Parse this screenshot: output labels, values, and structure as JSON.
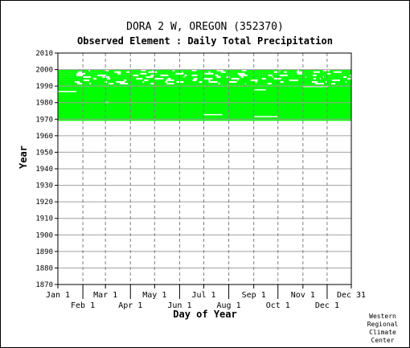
{
  "title": "DORA 2 W, OREGON   (352370)",
  "subtitle": "Observed Element : Daily Total Precipitation",
  "credit": "Western\nRegional\nClimate\nCenter",
  "chart_data": {
    "type": "heatmap",
    "title": "DORA 2 W, OREGON   (352370)",
    "subtitle": "Observed Element : Daily Total Precipitation",
    "xlabel": "Day of Year",
    "ylabel": "Year",
    "xlim": [
      1,
      365
    ],
    "ylim": [
      1870,
      2010
    ],
    "yticks": [
      1870,
      1880,
      1890,
      1900,
      1910,
      1920,
      1930,
      1940,
      1950,
      1960,
      1970,
      1980,
      1990,
      2000,
      2010
    ],
    "xticks_top": [
      {
        "label": "Jan 1",
        "day": 1
      },
      {
        "label": "Mar 1",
        "day": 60
      },
      {
        "label": "May 1",
        "day": 121
      },
      {
        "label": "Jul 1",
        "day": 182
      },
      {
        "label": "Sep 1",
        "day": 244
      },
      {
        "label": "Nov 1",
        "day": 305
      },
      {
        "label": "Dec 31",
        "day": 365
      }
    ],
    "xticks_bottom": [
      {
        "label": "Feb 1",
        "day": 32
      },
      {
        "label": "Apr 1",
        "day": 91
      },
      {
        "label": "Jun 1",
        "day": 152
      },
      {
        "label": "Aug 1",
        "day": 213
      },
      {
        "label": "Oct 1",
        "day": 274
      },
      {
        "label": "Dec 1",
        "day": 335
      }
    ],
    "grid": true,
    "data_color": "#00ff00",
    "record_start_year": 1969,
    "record_end_year": 1999,
    "full_data_years": [
      1969,
      1990
    ],
    "partial_years": [
      1991,
      1992,
      1993,
      1994,
      1995,
      1996,
      1997,
      1998,
      1999
    ]
  }
}
